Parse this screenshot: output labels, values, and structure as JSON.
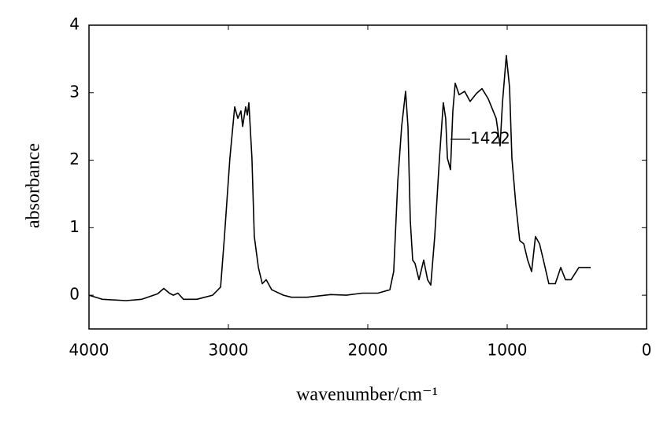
{
  "chart_data": {
    "type": "line",
    "xlabel": "wavenumber/cm⁻¹",
    "ylabel": "absorbance",
    "annotation": "1422",
    "color": "#000000",
    "xlim": [
      4000,
      0
    ],
    "ylim": [
      -0.5,
      4
    ],
    "xticks": [
      4000,
      3000,
      2000,
      1000,
      0
    ],
    "yticks": [
      0,
      1,
      2,
      3,
      4
    ],
    "x": [
      4000,
      3904,
      3734,
      3621,
      3508,
      3463,
      3424,
      3395,
      3362,
      3322,
      3226,
      3113,
      3056,
      3028,
      2989,
      2955,
      2932,
      2910,
      2898,
      2876,
      2864,
      2853,
      2831,
      2814,
      2785,
      2757,
      2729,
      2689,
      2605,
      2548,
      2435,
      2266,
      2153,
      2040,
      1927,
      1842,
      1814,
      1785,
      1757,
      1729,
      1712,
      1695,
      1678,
      1661,
      1633,
      1599,
      1571,
      1548,
      1520,
      1486,
      1458,
      1441,
      1429,
      1407,
      1390,
      1373,
      1345,
      1305,
      1266,
      1220,
      1181,
      1136,
      1079,
      1051,
      1034,
      1006,
      983,
      966,
      938,
      910,
      881,
      853,
      825,
      797,
      768,
      740,
      701,
      655,
      616,
      582,
      542,
      486,
      401
    ],
    "values": [
      0,
      -0.06,
      -0.08,
      -0.06,
      0.02,
      0.1,
      0.03,
      0,
      0.03,
      -0.06,
      -0.06,
      0,
      0.12,
      0.87,
      2.03,
      2.79,
      2.62,
      2.73,
      2.5,
      2.79,
      2.67,
      2.85,
      2.03,
      0.87,
      0.41,
      0.17,
      0.23,
      0.08,
      0,
      -0.03,
      -0.03,
      0.01,
      0,
      0.03,
      0.03,
      0.08,
      0.35,
      1.69,
      2.5,
      3.02,
      2.5,
      1.1,
      0.52,
      0.47,
      0.23,
      0.52,
      0.23,
      0.15,
      0.87,
      2.03,
      2.85,
      2.62,
      2.03,
      1.86,
      2.73,
      3.14,
      2.97,
      3.02,
      2.87,
      2.99,
      3.06,
      2.91,
      2.62,
      2.21,
      2.85,
      3.55,
      3.08,
      2.03,
      1.34,
      0.81,
      0.76,
      0.52,
      0.35,
      0.87,
      0.76,
      0.52,
      0.17,
      0.17,
      0.41,
      0.23,
      0.23,
      0.41,
      0.41
    ]
  }
}
